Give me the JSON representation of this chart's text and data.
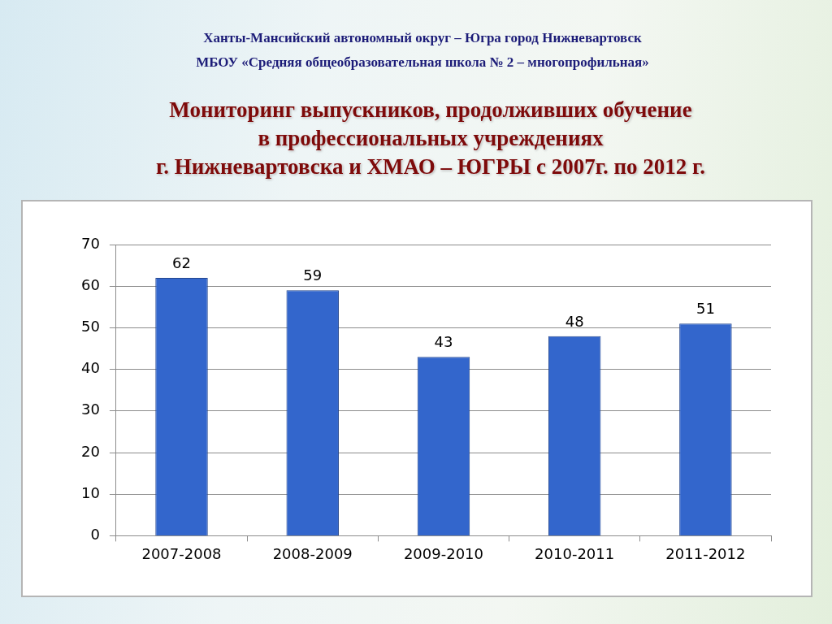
{
  "chart_data": {
    "type": "bar",
    "title": "Мониторинг выпускников, продолживших обучение\nв профессиональных учреждениях\nг. Нижневартовска и ХМАО – ЮГРЫ с 2007г. по 2012 г.",
    "annotations": [
      "Ханты-Мансийский автономный округ – Югра город Нижневартовск",
      "МБОУ «Средняя общеобразовательная школа № 2 – многопрофильная»"
    ],
    "categories": [
      "2007-2008",
      "2008-2009",
      "2009-2010",
      "2010-2011",
      "2011-2012"
    ],
    "values": [
      62,
      59,
      43,
      48,
      51
    ],
    "color": "#3366cc",
    "ylim": [
      0,
      70
    ],
    "yticks": [
      0,
      10,
      20,
      30,
      40,
      50,
      60,
      70
    ],
    "grid": "y",
    "data_labels": true
  }
}
